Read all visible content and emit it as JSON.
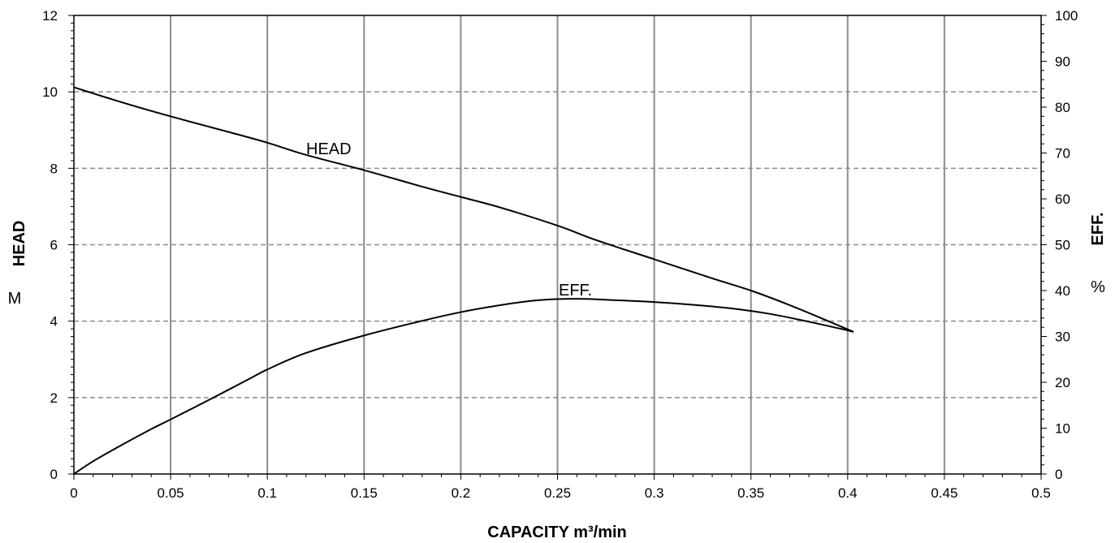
{
  "chart_data": {
    "type": "line",
    "title": "",
    "xlabel": "CAPACITY m³/min",
    "ylabel_left": "HEAD",
    "ylabel_left_unit": "M",
    "ylabel_right": "EFF.",
    "ylabel_right_unit": "%",
    "xlim": [
      0,
      0.5
    ],
    "ylim_left": [
      0,
      12
    ],
    "ylim_right": [
      0,
      100
    ],
    "x_ticks": [
      "0",
      "0.05",
      "0.1",
      "0.15",
      "0.2",
      "0.25",
      "0.3",
      "0.35",
      "0.4",
      "0.45",
      "0.5"
    ],
    "y_left_ticks": [
      "0",
      "2",
      "4",
      "6",
      "8",
      "10",
      "12"
    ],
    "y_right_ticks": [
      "0",
      "10",
      "20",
      "30",
      "40",
      "50",
      "60",
      "70",
      "80",
      "90",
      "100"
    ],
    "grid": {
      "vertical": true,
      "horizontal": "dashed"
    },
    "series": [
      {
        "name": "HEAD",
        "axis": "left",
        "points": [
          [
            0,
            10.12
          ],
          [
            0.02,
            9.8
          ],
          [
            0.04,
            9.5
          ],
          [
            0.06,
            9.22
          ],
          [
            0.08,
            8.95
          ],
          [
            0.1,
            8.67
          ],
          [
            0.12,
            8.35
          ],
          [
            0.15,
            7.95
          ],
          [
            0.18,
            7.52
          ],
          [
            0.2,
            7.25
          ],
          [
            0.22,
            6.98
          ],
          [
            0.25,
            6.5
          ],
          [
            0.27,
            6.12
          ],
          [
            0.3,
            5.62
          ],
          [
            0.33,
            5.12
          ],
          [
            0.35,
            4.8
          ],
          [
            0.37,
            4.42
          ],
          [
            0.39,
            4.0
          ],
          [
            0.403,
            3.72
          ]
        ]
      },
      {
        "name": "EFF.",
        "axis": "right",
        "points": [
          [
            0,
            0
          ],
          [
            0.01,
            2.8
          ],
          [
            0.025,
            6.4
          ],
          [
            0.04,
            9.8
          ],
          [
            0.05,
            11.9
          ],
          [
            0.07,
            16.2
          ],
          [
            0.09,
            20.6
          ],
          [
            0.1,
            22.8
          ],
          [
            0.12,
            26.4
          ],
          [
            0.15,
            30.2
          ],
          [
            0.18,
            33.4
          ],
          [
            0.2,
            35.3
          ],
          [
            0.22,
            36.8
          ],
          [
            0.24,
            37.9
          ],
          [
            0.26,
            38.2
          ],
          [
            0.28,
            37.9
          ],
          [
            0.3,
            37.5
          ],
          [
            0.32,
            36.9
          ],
          [
            0.34,
            36.1
          ],
          [
            0.36,
            34.9
          ],
          [
            0.38,
            33.2
          ],
          [
            0.395,
            31.8
          ],
          [
            0.403,
            31.0
          ]
        ]
      }
    ],
    "annotations": [
      {
        "text": "HEAD",
        "series": "HEAD"
      },
      {
        "text": "EFF.",
        "series": "EFF."
      }
    ]
  }
}
